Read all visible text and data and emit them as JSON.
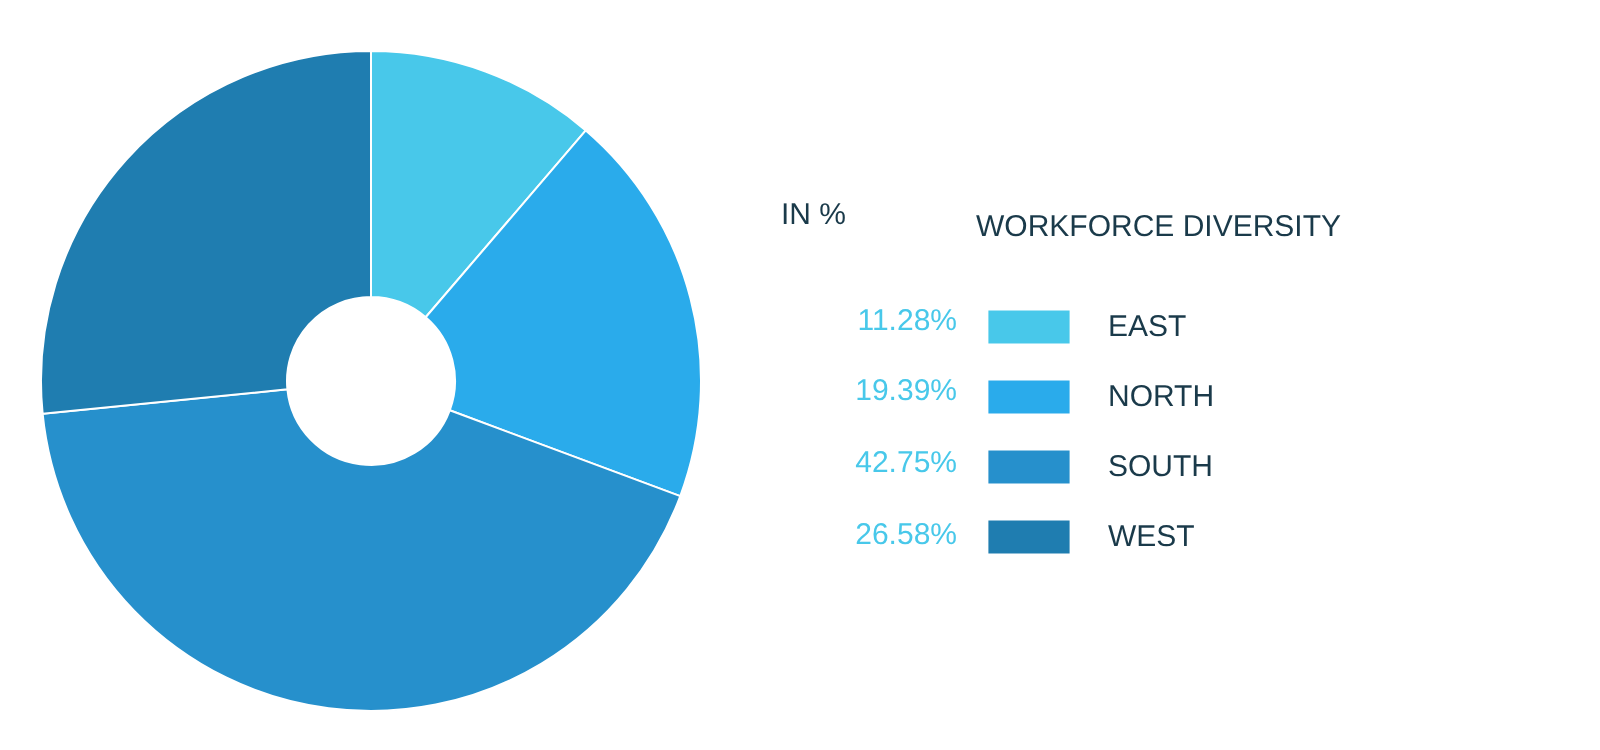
{
  "chart_data": {
    "type": "donut",
    "legend_title": "WORKFORCE DIVERSITY",
    "annotations": [
      "IN %"
    ],
    "categories": [
      "EAST",
      "NORTH",
      "SOUTH",
      "WEST"
    ],
    "values": [
      11.28,
      19.39,
      42.75,
      26.58
    ],
    "colors": [
      "#48c8ea",
      "#2aabeb",
      "#2690cc",
      "#1f7db0"
    ],
    "value_labels": [
      "11.28%",
      "19.39%",
      "42.75%",
      "26.58%"
    ],
    "legend": "right"
  }
}
